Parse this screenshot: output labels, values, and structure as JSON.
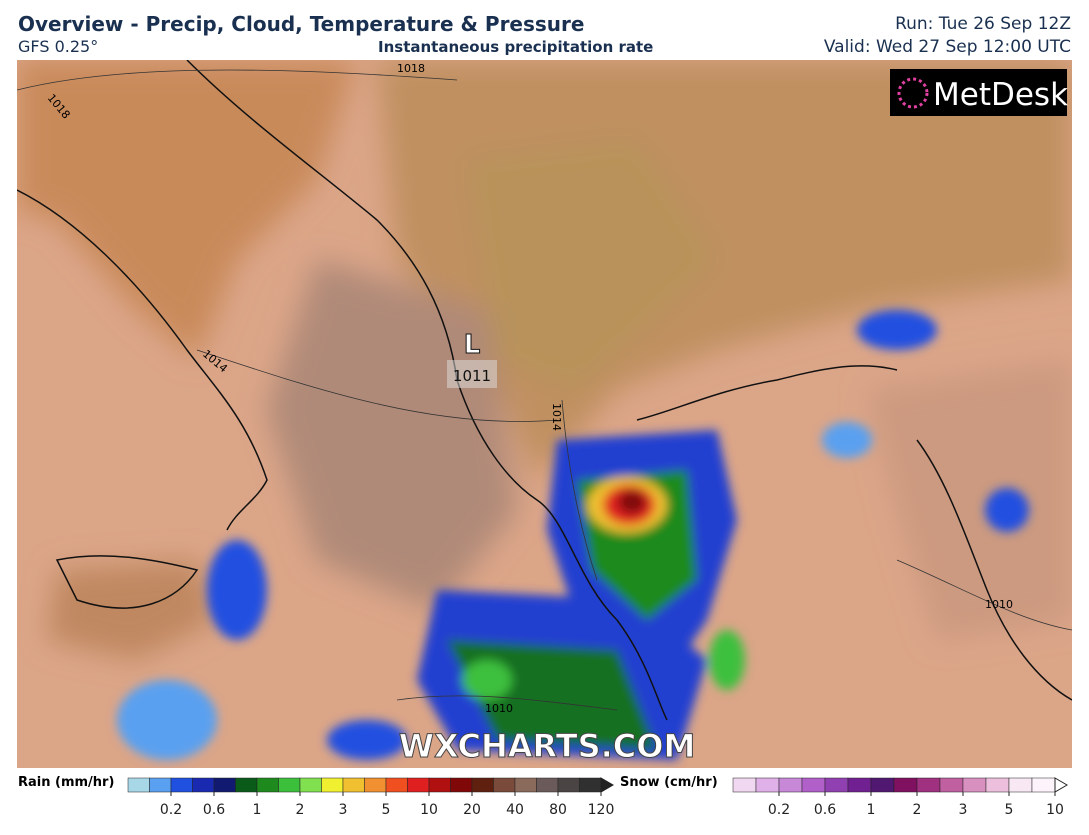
{
  "header": {
    "title": "Overview - Precip, Cloud, Temperature & Pressure",
    "model": "GFS 0.25°",
    "subtitle": "Instantaneous precipitation rate",
    "run": "Run: Tue 26 Sep 12Z",
    "valid": "Valid: Wed 27 Sep 12:00 UTC"
  },
  "map": {
    "logo": "MetDesk",
    "watermark": "WXCHARTS.COM",
    "low_marker": "L",
    "low_pressure": "1011",
    "isobar_labels": [
      "1018",
      "1018",
      "1014",
      "1014",
      "1010",
      "1010"
    ]
  },
  "legend": {
    "rain": {
      "label": "Rain (mm/hr)",
      "ticks": [
        "0.2",
        "0.6",
        "1",
        "2",
        "3",
        "5",
        "10",
        "20",
        "40",
        "80",
        "120"
      ]
    },
    "snow": {
      "label": "Snow (cm/hr)",
      "ticks": [
        "0.2",
        "0.6",
        "1",
        "2",
        "3",
        "5",
        "10"
      ]
    }
  }
}
